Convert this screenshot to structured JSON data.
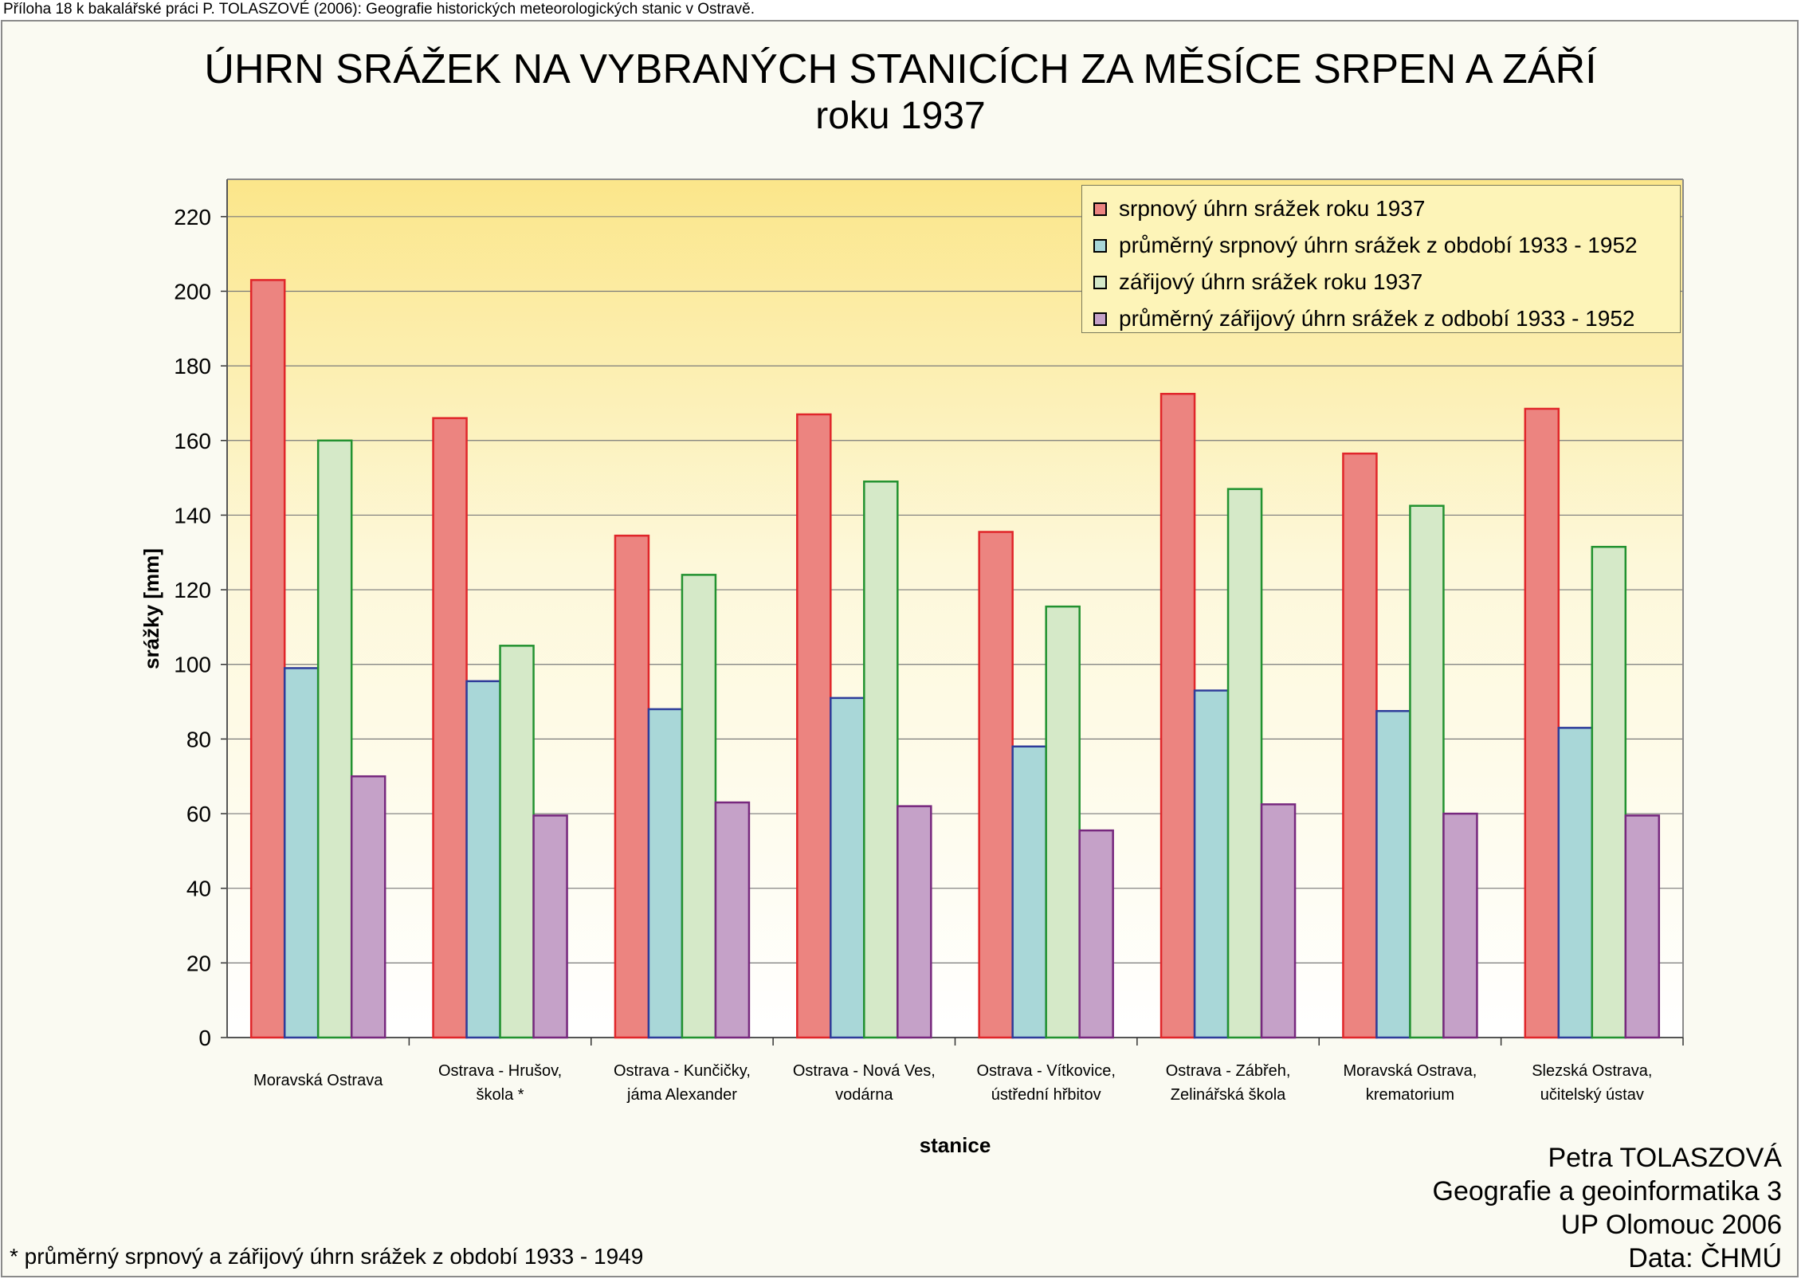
{
  "header_note": "Příloha 18 k bakalářské práci P. TOLASZOVÉ (2006): Geografie historických meteorologických stanic v Ostravě.",
  "author_block": [
    "Petra TOLASZOVÁ",
    "Geografie a geoinformatika 3",
    "UP Olomouc 2006",
    "Data: ČHMÚ"
  ],
  "footnote": "* průměrný srpnový a zářijový úhrn srážek z období 1933 - 1949",
  "chart_data": {
    "type": "bar",
    "title": "ÚHRN SRÁŽEK NA VYBRANÝCH STANICÍCH ZA MĚSÍCE SRPEN A ZÁŘÍ",
    "subtitle": "roku 1937",
    "xlabel": "stanice",
    "ylabel": "srážky [mm]",
    "ylim": [
      0,
      230
    ],
    "yticks": [
      0,
      20,
      40,
      60,
      80,
      100,
      120,
      140,
      160,
      180,
      200,
      220
    ],
    "grid": true,
    "legend_position": "top-right",
    "categories": [
      [
        "Moravská Ostrava"
      ],
      [
        "Ostrava - Hrušov,",
        "škola *"
      ],
      [
        "Ostrava - Kunčičky,",
        "jáma Alexander"
      ],
      [
        "Ostrava - Nová Ves,",
        "vodárna"
      ],
      [
        "Ostrava - Vítkovice,",
        "ústřední hřbitov"
      ],
      [
        "Ostrava - Zábřeh,",
        "Zelinářská škola"
      ],
      [
        "Moravská Ostrava,",
        "krematorium"
      ],
      [
        "Slezská Ostrava,",
        "učitelský ústav"
      ]
    ],
    "series": [
      {
        "name": "srpnový úhrn srážek roku 1937",
        "fill": "#ec8480",
        "stroke": "#e0262a",
        "values": [
          203,
          166,
          134.5,
          167,
          135.5,
          172.5,
          156.5,
          168.5
        ]
      },
      {
        "name": "průměrný srpnový úhrn srážek z období 1933 - 1952",
        "fill": "#a9d7d8",
        "stroke": "#2e3c9a",
        "values": [
          99,
          95.5,
          88,
          91,
          78,
          93,
          87.5,
          83
        ]
      },
      {
        "name": "zářijový úhrn srážek roku 1937",
        "fill": "#d5e9c8",
        "stroke": "#229230",
        "values": [
          160,
          105,
          124,
          149,
          115.5,
          147,
          142.5,
          131.5
        ]
      },
      {
        "name": "průměrný zářijový úhrn srážek z odbobí 1933 - 1952",
        "fill": "#c5a1c8",
        "stroke": "#77287e",
        "values": [
          70,
          59.5,
          63,
          62,
          55.5,
          62.5,
          60,
          59.5
        ]
      }
    ]
  }
}
